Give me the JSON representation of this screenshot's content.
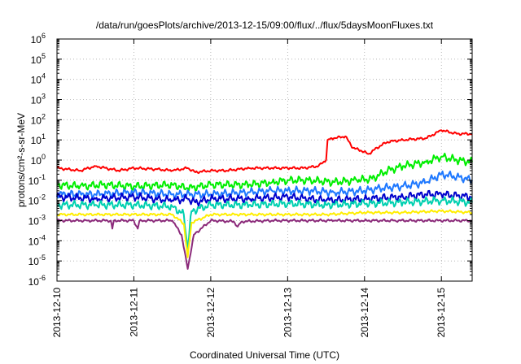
{
  "chart_data": {
    "type": "line",
    "title": "/data/run/goesPlots/archive/2013-12-15/09:00/flux/../flux/5daysMoonFluxes.txt",
    "xlabel": "Coordinated Universal Time (UTC)",
    "ylabel": "protons/cm²-s-sr-MeV",
    "y_scale": "log",
    "ylim": [
      1e-06,
      1000000.0
    ],
    "xlim": [
      0,
      5.4
    ],
    "x_tick_labels": [
      "2013-12-10",
      "2013-12-11",
      "2013-12-12",
      "2013-12-13",
      "2013-12-14",
      "2013-12-15"
    ],
    "y_tick_labels": [
      {
        "base": "10",
        "exp": "6"
      },
      {
        "base": "10",
        "exp": "5"
      },
      {
        "base": "10",
        "exp": "4"
      },
      {
        "base": "10",
        "exp": "3"
      },
      {
        "base": "10",
        "exp": "2"
      },
      {
        "base": "10",
        "exp": "1"
      },
      {
        "base": "10",
        "exp": "0"
      },
      {
        "base": "10",
        "exp": "-1"
      },
      {
        "base": "10",
        "exp": "-2"
      },
      {
        "base": "10",
        "exp": "-3"
      },
      {
        "base": "10",
        "exp": "-4"
      },
      {
        "base": "10",
        "exp": "-5"
      },
      {
        "base": "10",
        "exp": "-6"
      }
    ],
    "grid": true,
    "series": [
      {
        "color": "#ff0000",
        "x": [
          0,
          0.3,
          0.5,
          0.8,
          1.0,
          1.3,
          1.5,
          1.7,
          1.8,
          2.0,
          2.2,
          2.5,
          2.8,
          3.0,
          3.2,
          3.4,
          3.5,
          3.52,
          3.6,
          3.75,
          3.85,
          3.95,
          4.05,
          4.2,
          4.3,
          4.5,
          4.8,
          5.0,
          5.2,
          5.4
        ],
        "y": [
          0.4,
          0.3,
          0.5,
          0.3,
          0.4,
          0.35,
          0.3,
          0.4,
          0.25,
          0.3,
          0.3,
          0.4,
          0.4,
          0.4,
          0.4,
          0.5,
          1,
          10,
          12,
          15,
          4,
          3,
          2,
          5,
          8,
          10,
          12,
          30,
          20,
          20
        ]
      },
      {
        "color": "#00ee00",
        "x": [
          0,
          0.3,
          0.6,
          1.0,
          1.5,
          1.7,
          2.0,
          2.5,
          2.8,
          3.0,
          3.3,
          3.6,
          3.9,
          4.1,
          4.3,
          4.5,
          4.8,
          5.0,
          5.2,
          5.4
        ],
        "y": [
          0.06,
          0.05,
          0.06,
          0.05,
          0.06,
          0.04,
          0.06,
          0.06,
          0.08,
          0.1,
          0.1,
          0.08,
          0.1,
          0.12,
          0.3,
          0.5,
          0.8,
          1.5,
          1.0,
          0.8
        ]
      },
      {
        "color": "#1e78ff",
        "x": [
          0,
          0.5,
          1.0,
          1.5,
          2.0,
          2.5,
          2.8,
          3.0,
          3.3,
          3.6,
          4.0,
          4.2,
          4.5,
          4.8,
          5.0,
          5.2,
          5.4
        ],
        "y": [
          0.02,
          0.02,
          0.025,
          0.02,
          0.02,
          0.025,
          0.03,
          0.03,
          0.03,
          0.025,
          0.03,
          0.04,
          0.05,
          0.08,
          0.2,
          0.15,
          0.1
        ]
      },
      {
        "color": "#0000cc",
        "x": [
          0,
          0.5,
          1.0,
          1.5,
          1.7,
          1.8,
          2.0,
          2.5,
          3.0,
          3.5,
          4.0,
          4.5,
          4.8,
          5.0,
          5.4
        ],
        "y": [
          0.015,
          0.012,
          0.015,
          0.01,
          0.012,
          0.008,
          0.012,
          0.012,
          0.015,
          0.01,
          0.012,
          0.015,
          0.02,
          0.02,
          0.015
        ]
      },
      {
        "color": "#00d0b0",
        "x": [
          0,
          0.5,
          1.0,
          1.5,
          1.65,
          1.7,
          1.75,
          2.0,
          2.5,
          3.0,
          3.5,
          4.0,
          4.5,
          5.0,
          5.4
        ],
        "y": [
          0.006,
          0.006,
          0.006,
          0.005,
          0.002,
          4e-05,
          0.003,
          0.006,
          0.006,
          0.007,
          0.006,
          0.007,
          0.008,
          0.01,
          0.008
        ]
      },
      {
        "color": "#ffee00",
        "x": [
          0,
          0.5,
          1.0,
          1.5,
          1.65,
          1.7,
          1.75,
          2.0,
          2.5,
          3.0,
          3.5,
          4.0,
          4.5,
          5.0,
          5.4
        ],
        "y": [
          0.002,
          0.002,
          0.002,
          0.002,
          0.0007,
          1.5e-05,
          0.0008,
          0.002,
          0.002,
          0.002,
          0.002,
          0.0025,
          0.0025,
          0.003,
          0.0025
        ]
      },
      {
        "color": "#8b2a7a",
        "x": [
          0,
          0.4,
          0.7,
          0.72,
          0.74,
          1.0,
          1.05,
          1.07,
          1.1,
          1.5,
          1.62,
          1.7,
          1.78,
          2.0,
          2.3,
          2.35,
          2.4,
          2.8,
          3.2,
          3.6,
          4.0,
          4.4,
          4.8,
          5.2,
          5.4
        ],
        "y": [
          0.001,
          0.001,
          0.001,
          0.0004,
          0.001,
          0.001,
          0.0004,
          0.0009,
          0.001,
          0.001,
          0.0002,
          4e-06,
          0.0002,
          0.001,
          0.0009,
          0.0005,
          0.0009,
          0.001,
          0.001,
          0.001,
          0.001,
          0.001,
          0.001,
          0.001,
          0.001
        ]
      }
    ]
  }
}
